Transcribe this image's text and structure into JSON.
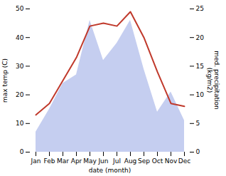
{
  "chart_data": {
    "type": "line",
    "xlabel": "date (month)",
    "ylabel": "max temp (C)",
    "y2label": "med. precipitation\n(kg/m2)",
    "categories": [
      "Jan",
      "Feb",
      "Mar",
      "Apr",
      "May",
      "Jun",
      "Jul",
      "Aug",
      "Sep",
      "Oct",
      "Nov",
      "Dec"
    ],
    "series": [
      {
        "type": "area",
        "axis": "y2",
        "color": "#c5cef0",
        "values": [
          3.5,
          7.5,
          12,
          13.5,
          23,
          16,
          19,
          23,
          14.5,
          7,
          10.5,
          5.5
        ]
      },
      {
        "type": "line",
        "color": "#c0392b",
        "values": [
          13,
          17,
          25,
          33,
          44,
          45,
          44,
          49,
          40,
          28,
          17,
          16
        ]
      }
    ],
    "ylim": [
      0,
      50
    ],
    "yticks": [
      0,
      10,
      20,
      30,
      40,
      50
    ],
    "y2lim": [
      0,
      25
    ],
    "y2ticks": [
      0,
      5,
      10,
      15,
      20,
      25
    ]
  }
}
